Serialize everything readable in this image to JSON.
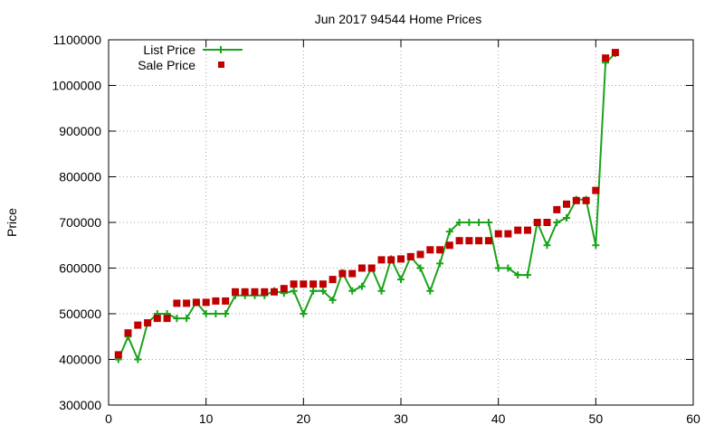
{
  "chart_data": {
    "type": "line",
    "title": "Jun 2017 94544 Home Prices",
    "xlabel": "",
    "ylabel": "Price",
    "xlim": [
      0,
      60
    ],
    "ylim": [
      300000,
      1100000
    ],
    "x_ticks": [
      "0",
      "10",
      "20",
      "30",
      "40",
      "50",
      "60"
    ],
    "y_ticks": [
      "300000",
      "400000",
      "500000",
      "600000",
      "700000",
      "800000",
      "900000",
      "1000000",
      "1100000"
    ],
    "x_tick_values": [
      0,
      10,
      20,
      30,
      40,
      50,
      60
    ],
    "y_tick_values": [
      300000,
      400000,
      500000,
      600000,
      700000,
      800000,
      900000,
      1000000,
      1100000
    ],
    "grid": true,
    "legend_position": "top-left",
    "series": [
      {
        "name": "List Price",
        "style": "line-with-plus-markers",
        "color": "#1aa31a",
        "x": [
          1,
          2,
          3,
          4,
          5,
          6,
          7,
          8,
          9,
          10,
          11,
          12,
          13,
          14,
          15,
          16,
          17,
          18,
          19,
          20,
          21,
          22,
          23,
          24,
          25,
          26,
          27,
          28,
          29,
          30,
          31,
          32,
          33,
          34,
          35,
          36,
          37,
          38,
          39,
          40,
          41,
          42,
          43,
          44,
          45,
          46,
          47,
          48,
          49,
          50,
          51,
          52
        ],
        "values": [
          400000,
          450000,
          400000,
          480000,
          500000,
          500000,
          490000,
          490000,
          525000,
          500000,
          500000,
          500000,
          540000,
          540000,
          540000,
          540000,
          550000,
          545000,
          550000,
          500000,
          550000,
          550000,
          530000,
          590000,
          550000,
          560000,
          600000,
          550000,
          620000,
          575000,
          625000,
          600000,
          550000,
          610000,
          680000,
          700000,
          700000,
          700000,
          700000,
          600000,
          600000,
          585000,
          585000,
          700000,
          650000,
          700000,
          710000,
          750000,
          750000,
          650000,
          1050000,
          1070000
        ]
      },
      {
        "name": "Sale Price",
        "style": "square-markers",
        "color": "#c00000",
        "x": [
          1,
          2,
          3,
          4,
          5,
          6,
          7,
          8,
          9,
          10,
          11,
          12,
          13,
          14,
          15,
          16,
          17,
          18,
          19,
          20,
          21,
          22,
          23,
          24,
          25,
          26,
          27,
          28,
          29,
          30,
          31,
          32,
          33,
          34,
          35,
          36,
          37,
          38,
          39,
          40,
          41,
          42,
          43,
          44,
          45,
          46,
          47,
          48,
          49,
          50,
          51,
          52
        ],
        "values": [
          410000,
          458000,
          475000,
          480000,
          490000,
          490000,
          523000,
          523000,
          525000,
          525000,
          528000,
          528000,
          548000,
          548000,
          548000,
          548000,
          548000,
          555000,
          565000,
          565000,
          565000,
          565000,
          575000,
          588000,
          588000,
          600000,
          600000,
          618000,
          618000,
          620000,
          625000,
          630000,
          640000,
          640000,
          650000,
          660000,
          660000,
          660000,
          660000,
          675000,
          675000,
          683000,
          683000,
          700000,
          700000,
          728000,
          740000,
          748000,
          748000,
          770000,
          1060000,
          1072000
        ]
      }
    ]
  }
}
